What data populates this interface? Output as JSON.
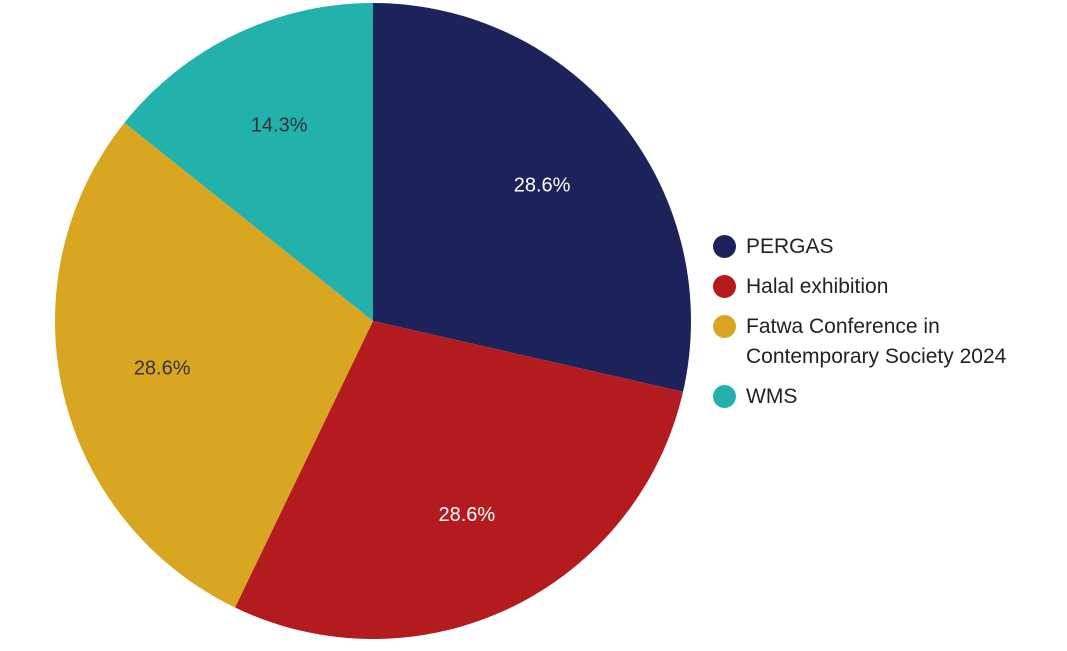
{
  "chart_data": {
    "type": "pie",
    "title": "",
    "categories": [
      "PERGAS",
      "Halal exhibition",
      "Fatwa Conference in Contemporary Society 2024",
      "WMS"
    ],
    "values": [
      28.6,
      28.6,
      28.6,
      14.3
    ],
    "data_labels": [
      "28.6%",
      "28.6%",
      "28.6%",
      "14.3%"
    ],
    "colors": [
      "#1c225a",
      "#b31b1e",
      "#d9a622",
      "#22b2ab"
    ],
    "label_colors": [
      "#ffffff",
      "#ffffff",
      "#333333",
      "#333333"
    ],
    "legend_placement": "right",
    "legend": [
      {
        "label_lines": [
          "PERGAS"
        ],
        "color": "#1c225a"
      },
      {
        "label_lines": [
          "Halal exhibition"
        ],
        "color": "#b31b1e"
      },
      {
        "label_lines": [
          "Fatwa Conference in",
          "Contemporary Society 2024"
        ],
        "color": "#d9a622"
      },
      {
        "label_lines": [
          "WMS"
        ],
        "color": "#22b2ab"
      }
    ]
  }
}
